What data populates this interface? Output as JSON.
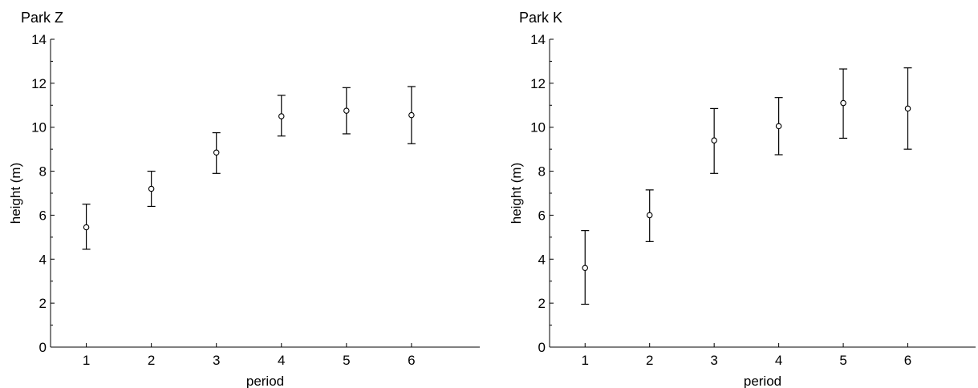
{
  "chart_data": [
    {
      "type": "scatter",
      "title": "Park Z",
      "xlabel": "period",
      "ylabel": "height (m)",
      "ylim": [
        0,
        14
      ],
      "x_ticks": [
        "1",
        "2",
        "3",
        "4",
        "5",
        "6"
      ],
      "y_ticks": [
        "0",
        "2",
        "4",
        "6",
        "8",
        "10",
        "12",
        "14"
      ],
      "grid": false,
      "error_bars": true,
      "points": [
        {
          "x": 1,
          "y": 5.45,
          "low": 4.45,
          "high": 6.5
        },
        {
          "x": 2,
          "y": 7.2,
          "low": 6.4,
          "high": 8.0
        },
        {
          "x": 3,
          "y": 8.85,
          "low": 7.9,
          "high": 9.75
        },
        {
          "x": 4,
          "y": 10.5,
          "low": 9.6,
          "high": 11.45
        },
        {
          "x": 5,
          "y": 10.75,
          "low": 9.7,
          "high": 11.8
        },
        {
          "x": 6,
          "y": 10.55,
          "low": 9.25,
          "high": 11.85
        }
      ]
    },
    {
      "type": "scatter",
      "title": "Park K",
      "xlabel": "period",
      "ylabel": "height (m)",
      "ylim": [
        0,
        14
      ],
      "x_ticks": [
        "1",
        "2",
        "3",
        "4",
        "5",
        "6"
      ],
      "y_ticks": [
        "0",
        "2",
        "4",
        "6",
        "8",
        "10",
        "12",
        "14"
      ],
      "grid": false,
      "error_bars": true,
      "points": [
        {
          "x": 1,
          "y": 3.6,
          "low": 1.95,
          "high": 5.3
        },
        {
          "x": 2,
          "y": 6.0,
          "low": 4.8,
          "high": 7.15
        },
        {
          "x": 3,
          "y": 9.4,
          "low": 7.9,
          "high": 10.85
        },
        {
          "x": 4,
          "y": 10.05,
          "low": 8.75,
          "high": 11.35
        },
        {
          "x": 5,
          "y": 11.1,
          "low": 9.5,
          "high": 12.65
        },
        {
          "x": 6,
          "y": 10.85,
          "low": 9.0,
          "high": 12.7
        }
      ]
    }
  ]
}
